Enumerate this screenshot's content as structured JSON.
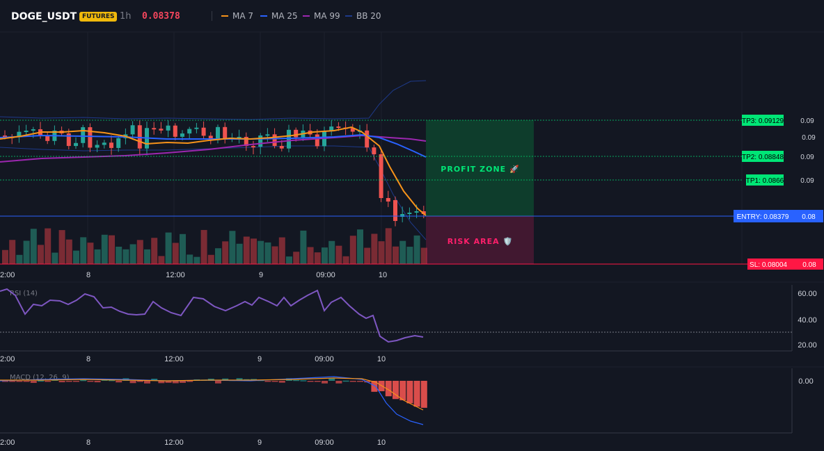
{
  "header": {
    "symbol": "DOGE_USDT",
    "badge": "FUTURES",
    "timeframe": "1h",
    "price": "0.08378",
    "legend": [
      {
        "label": "MA 7",
        "color": "#f7931a"
      },
      {
        "label": "MA 25",
        "color": "#2962ff"
      },
      {
        "label": "MA 99",
        "color": "#9c27b0"
      },
      {
        "label": "BB 20",
        "color": "#1e3a8a"
      }
    ]
  },
  "time_axis": [
    "2:00",
    "8",
    "12:00",
    "9",
    "09:00",
    "10"
  ],
  "price_labels": {
    "tp3": "TP3: 0.09129",
    "tp3_axis": "0.09",
    "axis_009": "0.09",
    "tp2": "TP2: 0.08848",
    "tp2_axis": "0.09",
    "tp1": "TP1: 0.0866",
    "tp1_axis": "0.09",
    "entry": "ENTRY: 0.08379",
    "entry_axis": "0.08",
    "sl": "SL: 0.08004",
    "sl_axis": "0.08"
  },
  "zones": {
    "profit": "PROFIT ZONE 🚀",
    "risk": "RISK AREA 🛡️"
  },
  "rsi": {
    "title": "RSI (14)",
    "ticks": [
      "60.00",
      "40.00",
      "20.00"
    ]
  },
  "macd": {
    "title": "MACD (12, 26, 9)",
    "ticks": [
      "0.00"
    ]
  },
  "colors": {
    "bg": "#131722",
    "up": "#26a69a",
    "down": "#ef5350",
    "ma7": "#f7931a",
    "ma25": "#2962ff",
    "ma99": "#9c27b0",
    "bb": "#1e3a8a",
    "rsi": "#7e57c2",
    "tp": "#00e676",
    "entry": "#2962ff",
    "sl": "#ff1744"
  }
}
